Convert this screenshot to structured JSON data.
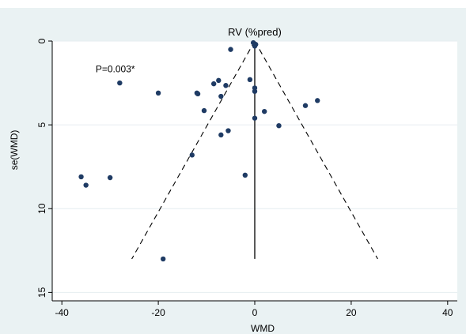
{
  "colors": {
    "page_background": "#eaf2f3",
    "top_band": "#ffffff",
    "plot_background": "#ffffff",
    "grid": "#e6eef0",
    "points": "#1f3b64",
    "lines": "#000000"
  },
  "chart_data": {
    "type": "scatter",
    "title": "RV (%pred)",
    "xlabel": "WMD",
    "ylabel": "se(WMD)",
    "xlim": [
      -42,
      42
    ],
    "ylim": [
      0,
      15.5
    ],
    "y_reversed": true,
    "x_ticks": [
      -40,
      -20,
      0,
      20,
      40
    ],
    "x_tick_labels": [
      "-40",
      "-20",
      "0",
      "20",
      "40"
    ],
    "y_ticks": [
      0,
      5,
      10,
      15
    ],
    "y_tick_labels": [
      "0",
      "5",
      "10",
      "15"
    ],
    "grid": "horizontal",
    "annotation": "P=0.003*",
    "vertical_line": {
      "x": 0,
      "y_from": 0,
      "y_to": 13
    },
    "funnel": {
      "apex": [
        0,
        0
      ],
      "left_base": [
        -25.5,
        13
      ],
      "right_base": [
        25.5,
        13
      ],
      "style": "dashed"
    },
    "points": [
      {
        "x": -36,
        "y": 8.1
      },
      {
        "x": -35,
        "y": 8.6
      },
      {
        "x": -30,
        "y": 8.15
      },
      {
        "x": -28,
        "y": 2.5
      },
      {
        "x": -20,
        "y": 3.1
      },
      {
        "x": -19,
        "y": 13.0
      },
      {
        "x": -13,
        "y": 6.8
      },
      {
        "x": -12,
        "y": 3.1
      },
      {
        "x": -11.8,
        "y": 3.15
      },
      {
        "x": -10.5,
        "y": 4.15
      },
      {
        "x": -8.5,
        "y": 2.55
      },
      {
        "x": -7.5,
        "y": 2.35
      },
      {
        "x": -7,
        "y": 3.3
      },
      {
        "x": -7,
        "y": 5.6
      },
      {
        "x": -6,
        "y": 2.65
      },
      {
        "x": -5.5,
        "y": 5.35
      },
      {
        "x": -5,
        "y": 0.5
      },
      {
        "x": -2,
        "y": 8.0
      },
      {
        "x": -1,
        "y": 2.3
      },
      {
        "x": -0.3,
        "y": 0.1
      },
      {
        "x": 0,
        "y": 0.3
      },
      {
        "x": 0.2,
        "y": 0.2
      },
      {
        "x": 0,
        "y": 2.8
      },
      {
        "x": 0,
        "y": 3.0
      },
      {
        "x": 0,
        "y": 4.6
      },
      {
        "x": 2,
        "y": 4.2
      },
      {
        "x": 5,
        "y": 5.05
      },
      {
        "x": 10.5,
        "y": 3.85
      },
      {
        "x": 13,
        "y": 3.55
      }
    ]
  }
}
